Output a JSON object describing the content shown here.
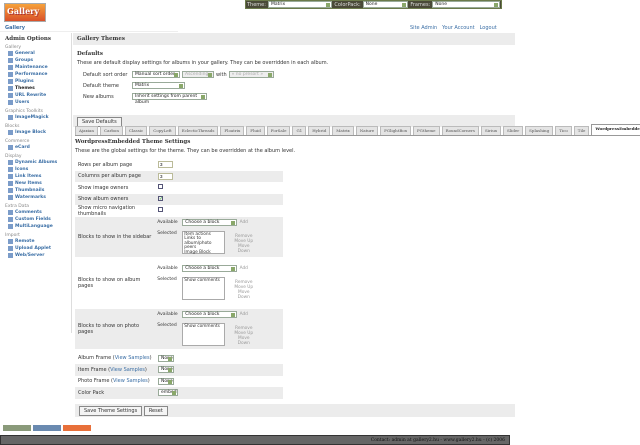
{
  "logo": "Gallery",
  "topbar": {
    "theme_label": "Theme:",
    "theme_value": "Matrix",
    "colorpack_label": "ColorPack:",
    "colorpack_value": "None",
    "frames_label": "Frames:",
    "frames_value": "None"
  },
  "breadcrumb": "Gallery",
  "toplinks": [
    "Site Admin",
    "Your Account",
    "Logout"
  ],
  "sidebar": {
    "title": "Admin Options",
    "groups": [
      {
        "name": "Gallery",
        "items": [
          "General",
          "Groups",
          "Maintenance",
          "Performance",
          "Plugins",
          "Themes",
          "URL Rewrite",
          "Users"
        ]
      },
      {
        "name": "Graphics Toolkits",
        "items": [
          "ImageMagick"
        ]
      },
      {
        "name": "Blocks",
        "items": [
          "Image Block"
        ]
      },
      {
        "name": "Commerce",
        "items": [
          "eCard"
        ]
      },
      {
        "name": "Display",
        "items": [
          "Dynamic Albums",
          "Icons",
          "Link Items",
          "New Items",
          "Thumbnails",
          "Watermarks"
        ]
      },
      {
        "name": "Extra Data",
        "items": [
          "Comments",
          "Custom Fields",
          "MultiLanguage"
        ]
      },
      {
        "name": "Import",
        "items": [
          "Remote",
          "Upload Applet",
          "Web/Server"
        ]
      }
    ]
  },
  "main": {
    "title": "Gallery Themes",
    "defaults_title": "Defaults",
    "defaults_desc": "These are default display settings for albums in your gallery. They can be overridden in each album.",
    "sort_label": "Default sort order",
    "sort_value": "Manual sort order",
    "sort_dir": "Ascending",
    "with_label": "with",
    "with_value": "« no presort »",
    "theme_label": "Default theme",
    "theme_value": "Matrix",
    "new_albums_label": "New albums",
    "new_albums_value": "Inherit settings from parent album",
    "save_defaults": "Save Defaults"
  },
  "tabs": [
    "Ajaxian",
    "Carbon",
    "Classic",
    "CopyLeft",
    "EclecticThreads",
    "Floatrix",
    "Fluid",
    "ForSale",
    "G1",
    "Hybrid",
    "Matrix",
    "Nature",
    "PGlightBox",
    "PGtheme",
    "RoundCorners",
    "Siriux",
    "Slider",
    "Splashing",
    "Tico",
    "Tile",
    "WordpressEmbedded"
  ],
  "active_tab": "WordpressEmbedded",
  "settings": {
    "title": "WordpressEmbedded Theme Settings",
    "desc": "These are the global settings for the theme. They can be overridden at the album level.",
    "rows_label": "Rows per album page",
    "rows_value": "3",
    "cols_label": "Columns per album page",
    "cols_value": "3",
    "image_owners": "Show image owners",
    "image_owners_checked": false,
    "album_owners": "Show album owners",
    "album_owners_checked": true,
    "micro_nav": "Show micro navigation thumbnails",
    "micro_nav_checked": false,
    "available": "Available",
    "selected": "Selected",
    "choose": "Choose a block",
    "add": "Add",
    "remove": "Remove",
    "move_up": "Move Up",
    "move_down": "Move Down",
    "sidebar_blocks": {
      "label": "Blocks to show in the sidebar",
      "items": [
        "Item actions",
        "Links to album/photo peers",
        "Image Block"
      ]
    },
    "album_blocks": {
      "label": "Blocks to show on album pages",
      "items": [
        "Show comments"
      ]
    },
    "photo_blocks": {
      "label": "Blocks to show on photo pages",
      "items": [
        "Show comments"
      ]
    },
    "album_frame": "Album Frame",
    "item_frame": "Item Frame",
    "photo_frame": "Photo Frame",
    "view_samples": "View Samples",
    "frame_value": "None",
    "color_pack_label": "Color Pack",
    "color_pack_value": "embed",
    "save": "Save Theme Settings",
    "reset": "Reset"
  },
  "footer": "Contact: admin at gallery2.hu - www.gallery2.hu - (c) 2006"
}
